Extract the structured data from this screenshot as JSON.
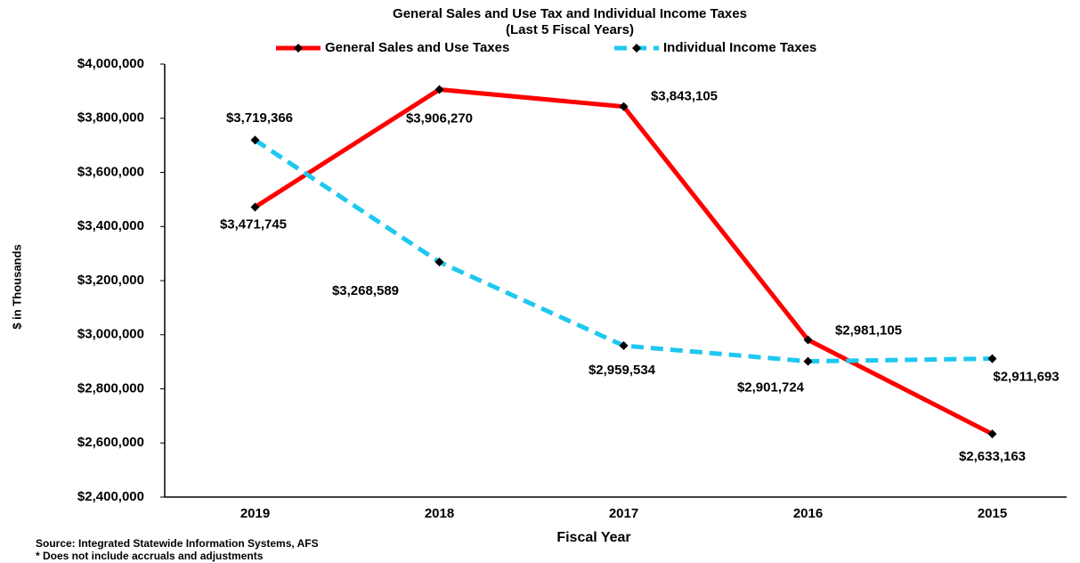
{
  "chart_data": {
    "type": "line",
    "title": "General Sales and Use Tax and Individual Income Taxes",
    "subtitle": "(Last 5 Fiscal Years)",
    "x_label": "Fiscal Year",
    "y_label": "$ in Thousands",
    "notes": [
      "Source: Integrated Statewide Information Systems, AFS",
      "* Does not include accruals and adjustments"
    ],
    "categories": [
      "2019",
      "2018",
      "2017",
      "2016",
      "2015"
    ],
    "ylim": [
      2400000,
      4000000
    ],
    "yticks": [
      {
        "value": 2400000,
        "label": "$2,400,000"
      },
      {
        "value": 2600000,
        "label": "$2,600,000"
      },
      {
        "value": 2800000,
        "label": "$2,800,000"
      },
      {
        "value": 3000000,
        "label": "$3,000,000"
      },
      {
        "value": 3200000,
        "label": "$3,200,000"
      },
      {
        "value": 3400000,
        "label": "$3,400,000"
      },
      {
        "value": 3600000,
        "label": "$3,600,000"
      },
      {
        "value": 3800000,
        "label": "$3,800,000"
      },
      {
        "value": 4000000,
        "label": "$4,000,000"
      }
    ],
    "grid": false,
    "legend": "top",
    "series": [
      {
        "name": "General Sales and Use Taxes",
        "color": "#ff0000",
        "dashed": false,
        "values": [
          3471745,
          3906270,
          3843105,
          2981105,
          2633163
        ],
        "value_labels": [
          "$3,471,745",
          "$3,906,270",
          "$3,843,105",
          "$2,981,105",
          "$2,633,163"
        ]
      },
      {
        "name": "Individual Income Taxes",
        "color": "#1ec8f0",
        "dashed": true,
        "values": [
          3719366,
          3268589,
          2959534,
          2901724,
          2911693
        ],
        "value_labels": [
          "$3,719,366",
          "$3,268,589",
          "$2,959,534",
          "$2,901,724",
          "$2,911,693"
        ]
      }
    ]
  }
}
